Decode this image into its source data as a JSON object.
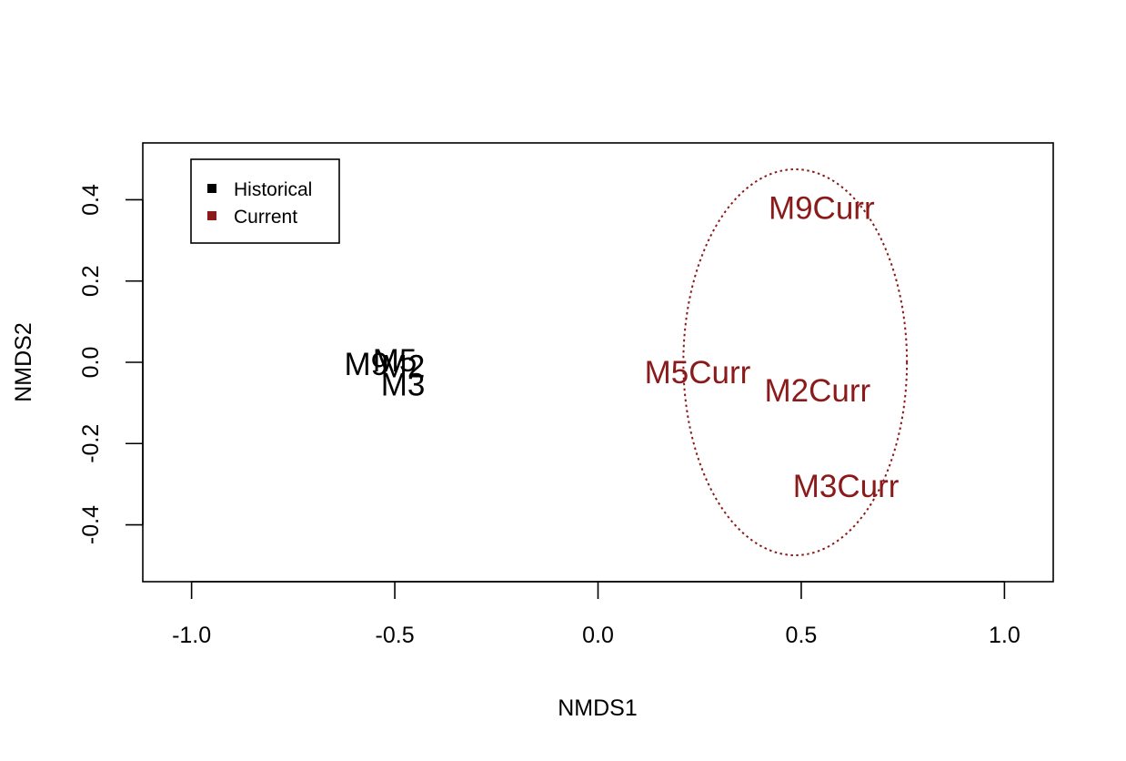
{
  "chart_data": {
    "type": "scatter",
    "xlabel": "NMDS1",
    "ylabel": "NMDS2",
    "xlim": [
      -1.12,
      1.12
    ],
    "ylim": [
      -0.54,
      0.54
    ],
    "x_ticks": [
      {
        "value": -1.0,
        "label": "-1.0"
      },
      {
        "value": -0.5,
        "label": "-0.5"
      },
      {
        "value": 0.0,
        "label": "0.0"
      },
      {
        "value": 0.5,
        "label": "0.5"
      },
      {
        "value": 1.0,
        "label": "1.0"
      }
    ],
    "y_ticks": [
      {
        "value": -0.4,
        "label": "-0.4"
      },
      {
        "value": -0.2,
        "label": "-0.2"
      },
      {
        "value": 0.0,
        "label": "0.0"
      },
      {
        "value": 0.2,
        "label": "0.2"
      },
      {
        "value": 0.4,
        "label": "0.4"
      }
    ],
    "grid": false,
    "legend_position": "top-left",
    "series": [
      {
        "name": "Historical",
        "color": "#000000",
        "points": [
          {
            "label": "M9",
            "x": -0.57,
            "y": -0.005
          },
          {
            "label": "M5",
            "x": -0.5,
            "y": 0.005
          },
          {
            "label": "M2",
            "x": -0.48,
            "y": -0.01
          },
          {
            "label": "M3",
            "x": -0.48,
            "y": -0.055
          }
        ]
      },
      {
        "name": "Current",
        "color": "#8b1a1a",
        "points": [
          {
            "label": "M9Curr",
            "x": 0.55,
            "y": 0.38
          },
          {
            "label": "M5Curr",
            "x": 0.245,
            "y": -0.025
          },
          {
            "label": "M2Curr",
            "x": 0.54,
            "y": -0.07
          },
          {
            "label": "M3Curr",
            "x": 0.61,
            "y": -0.305
          }
        ]
      }
    ],
    "ellipse": {
      "series": "Current",
      "center_x": 0.485,
      "center_y": 0.0,
      "radius_x": 0.275,
      "radius_y": 0.475,
      "line_style": "dotted",
      "color": "#8b1a1a"
    }
  }
}
